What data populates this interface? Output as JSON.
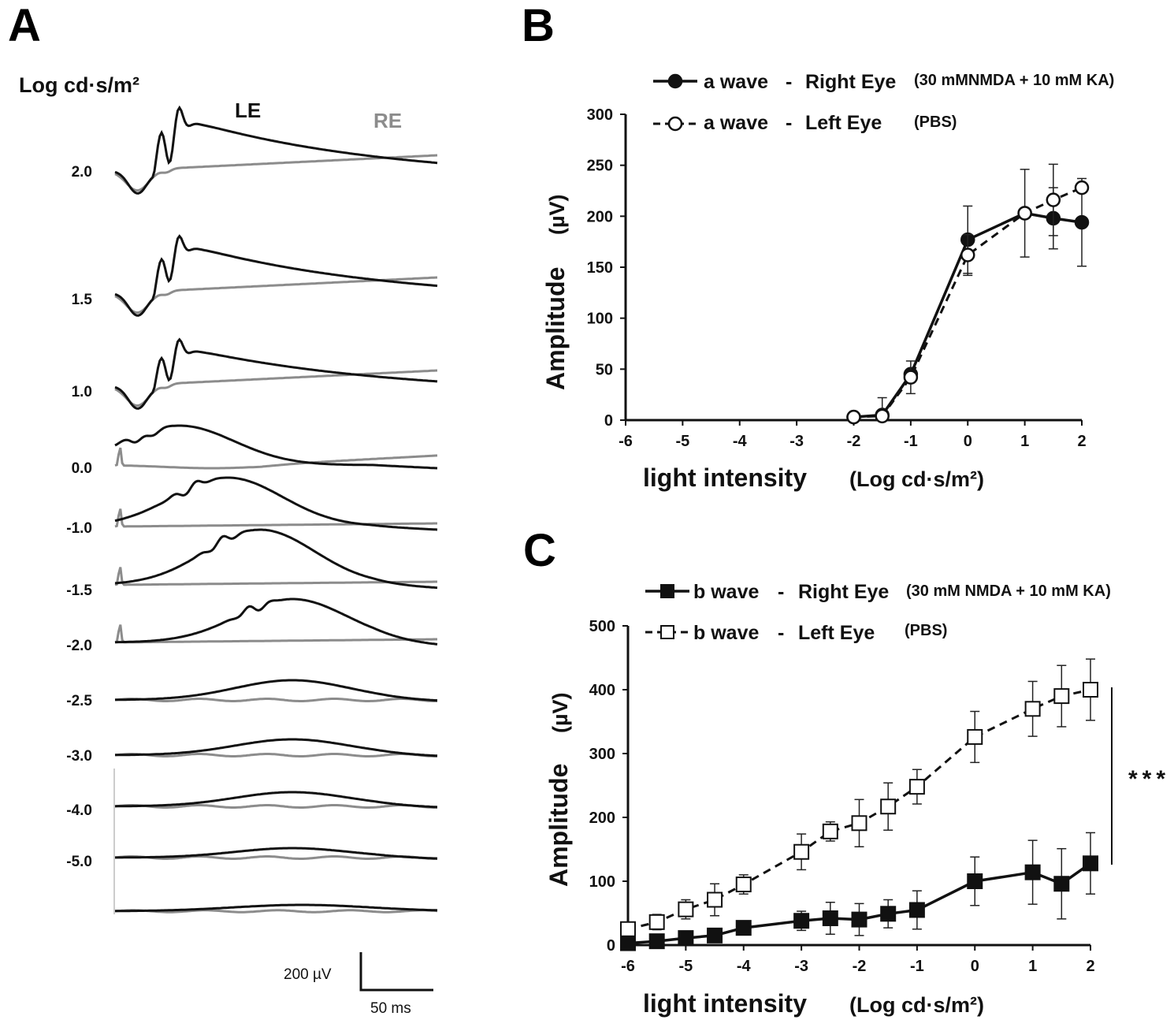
{
  "panels": {
    "a": "A",
    "b": "B",
    "c": "C"
  },
  "panel_a": {
    "intensity_label": "Log cd·s/m²",
    "trace_labels": {
      "le": "LE",
      "re": "RE"
    },
    "trace_colors": {
      "le": "#111111",
      "re": "#8c8c8c"
    },
    "intensities": [
      "2.0",
      "1.5",
      "1.0",
      "0.0",
      "-1.0",
      "-1.5",
      "-2.0",
      "-2.5",
      "-3.0",
      "-4.0",
      "-5.0"
    ],
    "scale_bar": {
      "amplitude": "200 µV",
      "time": "50 ms"
    }
  },
  "chart_data": [
    {
      "id": "B",
      "type": "line",
      "title": "",
      "xlabel": "light  intensity",
      "xlabel_unit": "(Log cd·s/m²)",
      "ylabel": "Amplitude",
      "ylabel_unit": "(µV)",
      "xlim": [
        -6,
        2
      ],
      "ylim": [
        0,
        300
      ],
      "xticks": [
        "-6",
        "-5",
        "-4",
        "-3",
        "-2",
        "-1",
        "0",
        "1",
        "2"
      ],
      "yticks": [
        "0",
        "50",
        "100",
        "150",
        "200",
        "250",
        "300"
      ],
      "grid": false,
      "legend_position": "top-right",
      "series": [
        {
          "name": "a wave",
          "eye": "Right Eye",
          "treatment": "(30 mMNMDA + 10 mM KA)",
          "marker": "filled-circle",
          "line": "solid",
          "color": "#111111",
          "x": [
            -2,
            -1.5,
            -1,
            0,
            1,
            1.5,
            2
          ],
          "y": [
            3,
            5,
            45,
            177,
            203,
            198,
            194
          ],
          "err": [
            0,
            0,
            0,
            33,
            43,
            30,
            43
          ]
        },
        {
          "name": "a wave",
          "eye": "Left Eye",
          "treatment": "(PBS)",
          "marker": "open-circle",
          "line": "dashed",
          "color": "#111111",
          "x": [
            -2,
            -1.5,
            -1,
            0,
            1,
            1.5,
            2
          ],
          "y": [
            3,
            4,
            42,
            162,
            203,
            216,
            228
          ],
          "err": [
            0,
            18,
            16,
            20,
            0,
            35,
            0
          ]
        }
      ]
    },
    {
      "id": "C",
      "type": "line",
      "title": "",
      "xlabel": "light  intensity",
      "xlabel_unit": "(Log cd·s/m²)",
      "ylabel": "Amplitude",
      "ylabel_unit": "(µV)",
      "xlim": [
        -6,
        2
      ],
      "ylim": [
        0,
        500
      ],
      "xticks": [
        "-6",
        "-5",
        "-4",
        "-3",
        "-2",
        "-1",
        "0",
        "1",
        "2"
      ],
      "yticks": [
        "0",
        "100",
        "200",
        "300",
        "400",
        "500"
      ],
      "grid": false,
      "legend_position": "top-right",
      "significance": "***",
      "series": [
        {
          "name": "b wave",
          "eye": "Right Eye",
          "treatment": "(30 mM NMDA + 10 mM KA)",
          "marker": "filled-square",
          "line": "solid",
          "color": "#111111",
          "x": [
            -6,
            -5.5,
            -5,
            -4.5,
            -4,
            -3,
            -2.5,
            -2,
            -1.5,
            -1,
            0,
            1,
            1.5,
            2
          ],
          "y": [
            3,
            6,
            11,
            15,
            27,
            38,
            42,
            40,
            49,
            55,
            100,
            114,
            96,
            128
          ],
          "err": [
            0,
            0,
            0,
            0,
            0,
            15,
            25,
            25,
            22,
            30,
            38,
            50,
            55,
            48
          ]
        },
        {
          "name": "b wave",
          "eye": "Left Eye",
          "treatment": "(PBS)",
          "marker": "open-square",
          "line": "dashed",
          "color": "#111111",
          "x": [
            -6,
            -5.5,
            -5,
            -4.5,
            -4,
            -3,
            -2.5,
            -2,
            -1.5,
            -1,
            0,
            1,
            1.5,
            2
          ],
          "y": [
            25,
            36,
            56,
            71,
            95,
            146,
            178,
            191,
            217,
            248,
            326,
            370,
            390,
            400
          ],
          "err": [
            0,
            12,
            15,
            25,
            15,
            28,
            15,
            37,
            37,
            27,
            40,
            43,
            48,
            48
          ]
        }
      ]
    }
  ]
}
